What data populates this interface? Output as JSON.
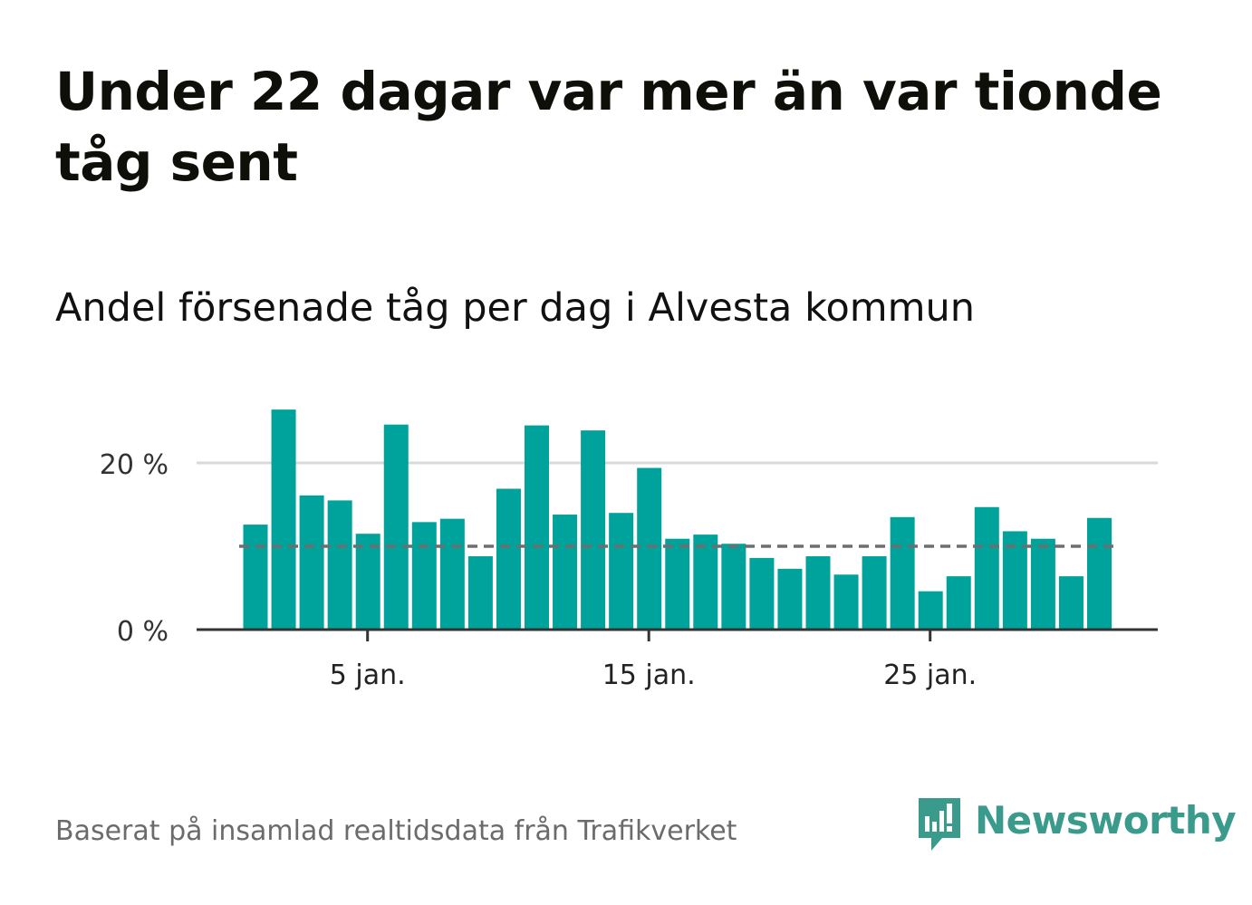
{
  "title": "Under 22 dagar var mer än var tionde tåg sent",
  "subtitle": "Andel försenade tåg per dag i Alvesta kommun",
  "footer": "Baserat på insamlad realtidsdata från Trafikverket",
  "brand": {
    "name": "Newsworthy",
    "icon": "newsworthy-logo-icon",
    "color": "#3a9a8b"
  },
  "colors": {
    "bar": "#00a39b",
    "reference_line": "#6e6e6e",
    "gridline": "#d9d9d9",
    "axis": "#333333"
  },
  "chart_data": {
    "type": "bar",
    "x": [
      1,
      2,
      3,
      4,
      5,
      6,
      7,
      8,
      9,
      10,
      11,
      12,
      13,
      14,
      15,
      16,
      17,
      18,
      19,
      20,
      21,
      22,
      23,
      24,
      25,
      26,
      27,
      28,
      29,
      30,
      31
    ],
    "values": [
      12.6,
      26.4,
      16.1,
      15.5,
      11.5,
      24.6,
      12.9,
      13.3,
      8.8,
      16.9,
      24.5,
      13.8,
      23.9,
      14.0,
      19.4,
      10.9,
      11.4,
      10.3,
      8.6,
      7.3,
      8.8,
      6.6,
      8.8,
      13.5,
      4.6,
      6.4,
      14.7,
      11.8,
      10.9,
      6.4,
      13.4
    ],
    "unit": "%",
    "reference_line": 10,
    "ylim": [
      0,
      28
    ],
    "yticks": [
      0,
      20
    ],
    "ytick_labels": [
      "0 %",
      "20 %"
    ],
    "xticks": [
      5,
      15,
      25
    ],
    "xtick_labels": [
      "5 jan.",
      "15 jan.",
      "25 jan."
    ],
    "grid": true
  }
}
